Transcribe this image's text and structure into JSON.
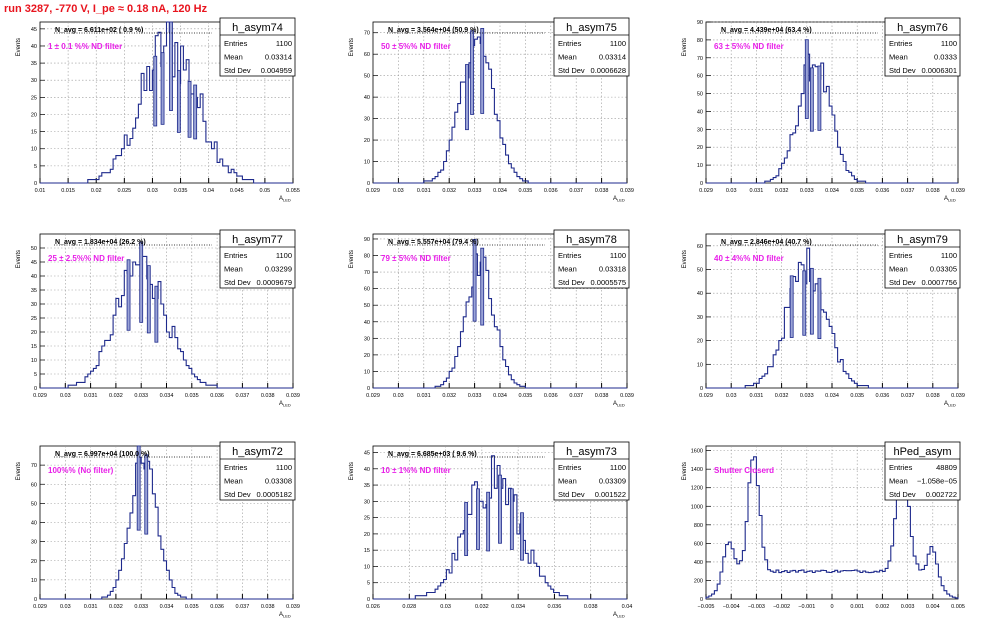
{
  "page": {
    "run_title": "run 3287,  -770 V, I_pe ≈ 0.18 nA, 120 Hz"
  },
  "colors": {
    "histogram_line": "#1e2a8c",
    "histogram_fill": "#9aa3d6",
    "annotation": "#e81ee8",
    "run_title": "#e8141e",
    "grid": "#9a9a9a"
  },
  "chart_data": [
    {
      "type": "histogram",
      "name": "h_asym74",
      "stats": {
        "Entries": "1100",
        "Mean": "0.03314",
        "Std Dev": "0.004959"
      },
      "navg": "N_avg = 6.611e+02 ( 0.9 %)",
      "annotation": "1 ± 0.1 %% ND filter",
      "xlabel": "A_LED",
      "ylabel": "Events",
      "xlim": [
        0.01,
        0.055
      ],
      "ylim": [
        0,
        47
      ],
      "grid": true,
      "xticks": [
        "0.01",
        "0.015",
        "0.02",
        "0.025",
        "0.03",
        "0.035",
        "0.04",
        "0.045",
        "0.05",
        "0.055"
      ],
      "yticks": [
        "0",
        "5",
        "10",
        "15",
        "20",
        "25",
        "30",
        "35",
        "40",
        "45"
      ],
      "shape": {
        "kind": "gauss",
        "mean": 0.0331,
        "sigma": 0.005,
        "peak": 40,
        "noise": 0.28
      },
      "vertical_bars": [
        0.0305,
        0.0318,
        0.0333,
        0.0347,
        0.0366,
        0.0376
      ]
    },
    {
      "type": "histogram",
      "name": "h_asym75",
      "stats": {
        "Entries": "1100",
        "Mean": "0.03314",
        "Std Dev": "0.0006628"
      },
      "navg": "N_avg = 3.564e+04 (50.9 %)",
      "annotation": "50 ± 5%% ND filter",
      "xlabel": "A_LED",
      "ylabel": "Events",
      "xlim": [
        0.029,
        0.039
      ],
      "ylim": [
        0,
        75
      ],
      "grid": true,
      "xticks": [
        "0.029",
        "0.03",
        "0.031",
        "0.032",
        "0.033",
        "0.034",
        "0.035",
        "0.036",
        "0.037",
        "0.038",
        "0.039"
      ],
      "yticks": [
        "0",
        "10",
        "20",
        "30",
        "40",
        "50",
        "60",
        "70"
      ],
      "shape": {
        "kind": "gauss",
        "mean": 0.0331,
        "sigma": 0.00066,
        "peak": 65,
        "noise": 0.12
      },
      "vertical_bars": [
        0.0327,
        0.0329,
        0.0333
      ]
    },
    {
      "type": "histogram",
      "name": "h_asym76",
      "stats": {
        "Entries": "1100",
        "Mean": "0.0333",
        "Std Dev": "0.0006301"
      },
      "navg": "N_avg = 4.439e+04 (63.4 %)",
      "annotation": "63 ± 5%% ND filter",
      "xlabel": "A_LED",
      "ylabel": "Events",
      "xlim": [
        0.029,
        0.039
      ],
      "ylim": [
        0,
        90
      ],
      "grid": true,
      "xticks": [
        "0.029",
        "0.03",
        "0.031",
        "0.032",
        "0.033",
        "0.034",
        "0.035",
        "0.036",
        "0.037",
        "0.038",
        "0.039"
      ],
      "yticks": [
        "0",
        "10",
        "20",
        "30",
        "40",
        "50",
        "60",
        "70",
        "80",
        "90"
      ],
      "shape": {
        "kind": "gauss",
        "mean": 0.0333,
        "sigma": 0.00063,
        "peak": 68,
        "noise": 0.15
      },
      "vertical_bars": [
        0.033,
        0.0332,
        0.0335
      ]
    },
    {
      "type": "histogram",
      "name": "h_asym77",
      "stats": {
        "Entries": "1100",
        "Mean": "0.03299",
        "Std Dev": "0.0009679"
      },
      "navg": "N_avg = 1.834e+04 (26.2 %)",
      "annotation": "25 ± 2.5%% ND filter",
      "xlabel": "A_LED",
      "ylabel": "Events",
      "xlim": [
        0.029,
        0.039
      ],
      "ylim": [
        0,
        55
      ],
      "grid": true,
      "xticks": [
        "0.029",
        "0.03",
        "0.031",
        "0.032",
        "0.033",
        "0.034",
        "0.035",
        "0.036",
        "0.037",
        "0.038",
        "0.039"
      ],
      "yticks": [
        "0",
        "5",
        "10",
        "15",
        "20",
        "25",
        "30",
        "35",
        "40",
        "45",
        "50"
      ],
      "shape": {
        "kind": "gauss",
        "mean": 0.033,
        "sigma": 0.00097,
        "peak": 44,
        "noise": 0.18
      },
      "vertical_bars": [
        0.0325,
        0.033,
        0.0333,
        0.0336
      ]
    },
    {
      "type": "histogram",
      "name": "h_asym78",
      "stats": {
        "Entries": "1100",
        "Mean": "0.03318",
        "Std Dev": "0.0005575"
      },
      "navg": "N_avg = 5.557e+04 (79.4 %)",
      "annotation": "79 ± 5%% ND filter",
      "xlabel": "A_LED",
      "ylabel": "Events",
      "xlim": [
        0.029,
        0.039
      ],
      "ylim": [
        0,
        93
      ],
      "grid": true,
      "xticks": [
        "0.029",
        "0.03",
        "0.031",
        "0.032",
        "0.033",
        "0.034",
        "0.035",
        "0.036",
        "0.037",
        "0.038",
        "0.039"
      ],
      "yticks": [
        "0",
        "10",
        "20",
        "30",
        "40",
        "50",
        "60",
        "70",
        "80",
        "90"
      ],
      "shape": {
        "kind": "gauss",
        "mean": 0.0332,
        "sigma": 0.00056,
        "peak": 76,
        "noise": 0.12
      },
      "vertical_bars": [
        0.033,
        0.0333
      ]
    },
    {
      "type": "histogram",
      "name": "h_asym79",
      "stats": {
        "Entries": "1100",
        "Mean": "0.03305",
        "Std Dev": "0.0007756"
      },
      "navg": "N_avg = 2.846e+04 (40.7 %)",
      "annotation": "40 ± 4%% ND filter",
      "xlabel": "A_LED",
      "ylabel": "Events",
      "xlim": [
        0.029,
        0.039
      ],
      "ylim": [
        0,
        65
      ],
      "grid": true,
      "xticks": [
        "0.029",
        "0.03",
        "0.031",
        "0.032",
        "0.033",
        "0.034",
        "0.035",
        "0.036",
        "0.037",
        "0.038",
        "0.039"
      ],
      "yticks": [
        "0",
        "10",
        "20",
        "30",
        "40",
        "50",
        "60"
      ],
      "shape": {
        "kind": "gauss",
        "mean": 0.033,
        "sigma": 0.00078,
        "peak": 52,
        "noise": 0.16
      },
      "vertical_bars": [
        0.0324,
        0.0329,
        0.0332,
        0.0335
      ]
    },
    {
      "type": "histogram",
      "name": "h_asym72",
      "stats": {
        "Entries": "1100",
        "Mean": "0.03308",
        "Std Dev": "0.0005182"
      },
      "navg": "N_avg = 6.997e+04 (100.0 %)",
      "annotation": "100%% (No filter)",
      "xlabel": "A_LED",
      "ylabel": "Events",
      "xlim": [
        0.029,
        0.039
      ],
      "ylim": [
        0,
        80
      ],
      "grid": true,
      "xticks": [
        "0.029",
        "0.03",
        "0.031",
        "0.032",
        "0.033",
        "0.034",
        "0.035",
        "0.036",
        "0.037",
        "0.038",
        "0.039"
      ],
      "yticks": [
        "0",
        "10",
        "20",
        "30",
        "40",
        "50",
        "60",
        "70"
      ],
      "shape": {
        "kind": "gauss",
        "mean": 0.0331,
        "sigma": 0.00052,
        "peak": 74,
        "noise": 0.1
      },
      "vertical_bars": [
        0.0329,
        0.0332
      ]
    },
    {
      "type": "histogram",
      "name": "h_asym73",
      "stats": {
        "Entries": "1100",
        "Mean": "0.03309",
        "Std Dev": "0.001522"
      },
      "navg": "N_avg = 6.685e+03 ( 9.6 %)",
      "annotation": "10 ± 1%% ND filter",
      "xlabel": "A_LED",
      "ylabel": "Events",
      "xlim": [
        0.026,
        0.041
      ],
      "ylim": [
        0,
        47
      ],
      "grid": true,
      "xticks": [
        "0.026",
        "0.028",
        "0.03",
        "0.032",
        "0.034",
        "0.036",
        "0.038",
        "0.04"
      ],
      "yticks": [
        "0",
        "5",
        "10",
        "15",
        "20",
        "25",
        "30",
        "35",
        "40",
        "45"
      ],
      "shape": {
        "kind": "gauss",
        "mean": 0.0331,
        "sigma": 0.00152,
        "peak": 38,
        "noise": 0.25
      },
      "vertical_bars": [
        0.0315,
        0.0322,
        0.0328,
        0.0335,
        0.0342,
        0.0348
      ]
    },
    {
      "type": "histogram",
      "name": "hPed_asym",
      "stats": {
        "Entries": "48809",
        "Mean": "−1.058e−05",
        "Std Dev": "0.002722"
      },
      "navg": "",
      "annotation": "Shutter Closerd",
      "xlabel": "",
      "ylabel": "Events",
      "xlim": [
        -0.005,
        0.005
      ],
      "ylim": [
        0,
        1650
      ],
      "grid": true,
      "xticks": [
        "−0.005",
        "−0.004",
        "−0.003",
        "−0.002",
        "−0.001",
        "0",
        "0.001",
        "0.002",
        "0.003",
        "0.004",
        "0.005"
      ],
      "yticks": [
        "0",
        "200",
        "400",
        "600",
        "800",
        "1000",
        "1200",
        "1400",
        "1600"
      ],
      "shape": {
        "kind": "pedestal",
        "baseline": 300,
        "peaks": [
          {
            "mean": -0.0031,
            "sigma": 0.00022,
            "amp": 1250
          },
          {
            "mean": -0.0041,
            "sigma": 0.0002,
            "amp": 380
          },
          {
            "mean": 0.0028,
            "sigma": 0.00025,
            "amp": 1150
          },
          {
            "mean": 0.004,
            "sigma": 0.00018,
            "amp": 300
          }
        ],
        "noise": 0.05
      },
      "vertical_bars": []
    }
  ]
}
